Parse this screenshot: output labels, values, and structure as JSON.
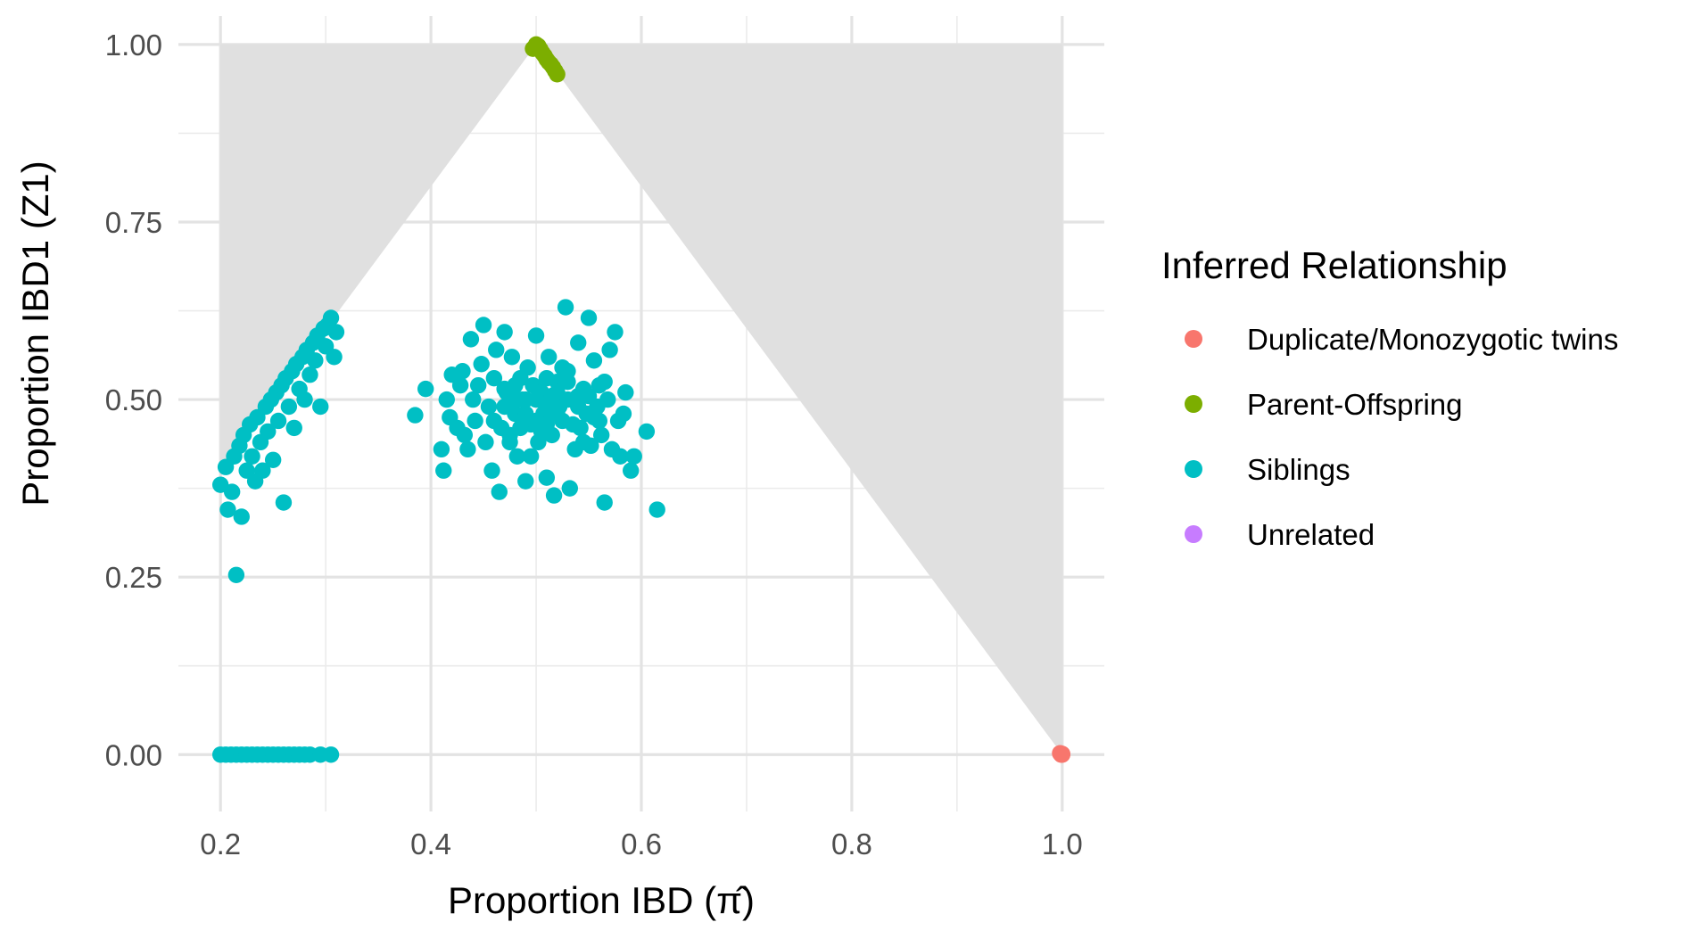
{
  "chart_data": {
    "type": "scatter",
    "xlabel": "Proportion IBD (π̂)",
    "ylabel": "Proportion IBD1 (Z1)",
    "xlim": [
      0.16,
      1.04
    ],
    "ylim": [
      -0.08,
      1.04
    ],
    "x_ticks": [
      "0.2",
      "0.4",
      "0.6",
      "0.8",
      "1.0"
    ],
    "y_ticks": [
      "0.00",
      "0.25",
      "0.50",
      "0.75",
      "1.00"
    ],
    "grid": true,
    "legend": {
      "title": "Inferred Relationship",
      "placement": "right",
      "entries": [
        "Duplicate/Monozygotic twins",
        "Parent-Offspring",
        "Siblings",
        "Unrelated"
      ]
    },
    "shaded_region": {
      "fill": "#e0e0e0",
      "polygon": [
        [
          0.2,
          1.0
        ],
        [
          0.2,
          0.4
        ],
        [
          0.5,
          1.0
        ],
        [
          1.0,
          1.0
        ],
        [
          1.0,
          0.0
        ],
        [
          0.5,
          1.0
        ]
      ]
    },
    "series": [
      {
        "name": "Duplicate/Monozygotic twins",
        "color": "#F8766D",
        "points": [
          [
            0.999,
            0.0
          ],
          [
            1.0,
            0.001
          ],
          [
            0.998,
            0.002
          ],
          [
            1.0,
            0.0
          ]
        ]
      },
      {
        "name": "Parent-Offspring",
        "color": "#7CAE00",
        "points": [
          [
            0.497,
            0.994
          ],
          [
            0.5,
            1.0
          ],
          [
            0.502,
            0.998
          ],
          [
            0.504,
            0.993
          ],
          [
            0.506,
            0.988
          ],
          [
            0.508,
            0.984
          ],
          [
            0.51,
            0.979
          ],
          [
            0.512,
            0.975
          ],
          [
            0.514,
            0.972
          ],
          [
            0.516,
            0.968
          ],
          [
            0.518,
            0.963
          ],
          [
            0.52,
            0.958
          ]
        ]
      },
      {
        "name": "Siblings",
        "color": "#00BFC4",
        "points": [
          [
            0.2,
            0.38
          ],
          [
            0.205,
            0.405
          ],
          [
            0.207,
            0.345
          ],
          [
            0.211,
            0.37
          ],
          [
            0.213,
            0.42
          ],
          [
            0.215,
            0.253
          ],
          [
            0.218,
            0.435
          ],
          [
            0.22,
            0.335
          ],
          [
            0.222,
            0.45
          ],
          [
            0.225,
            0.4
          ],
          [
            0.228,
            0.465
          ],
          [
            0.23,
            0.42
          ],
          [
            0.233,
            0.385
          ],
          [
            0.235,
            0.475
          ],
          [
            0.238,
            0.44
          ],
          [
            0.24,
            0.4
          ],
          [
            0.243,
            0.49
          ],
          [
            0.245,
            0.455
          ],
          [
            0.248,
            0.5
          ],
          [
            0.25,
            0.415
          ],
          [
            0.253,
            0.51
          ],
          [
            0.255,
            0.47
          ],
          [
            0.258,
            0.52
          ],
          [
            0.26,
            0.355
          ],
          [
            0.262,
            0.53
          ],
          [
            0.265,
            0.49
          ],
          [
            0.268,
            0.54
          ],
          [
            0.27,
            0.46
          ],
          [
            0.272,
            0.55
          ],
          [
            0.275,
            0.515
          ],
          [
            0.278,
            0.56
          ],
          [
            0.28,
            0.5
          ],
          [
            0.282,
            0.57
          ],
          [
            0.285,
            0.535
          ],
          [
            0.288,
            0.58
          ],
          [
            0.29,
            0.555
          ],
          [
            0.292,
            0.59
          ],
          [
            0.295,
            0.49
          ],
          [
            0.298,
            0.6
          ],
          [
            0.3,
            0.575
          ],
          [
            0.302,
            0.605
          ],
          [
            0.305,
            0.615
          ],
          [
            0.308,
            0.56
          ],
          [
            0.31,
            0.595
          ],
          [
            0.385,
            0.478
          ],
          [
            0.395,
            0.515
          ],
          [
            0.41,
            0.43
          ],
          [
            0.412,
            0.4
          ],
          [
            0.415,
            0.5
          ],
          [
            0.418,
            0.475
          ],
          [
            0.42,
            0.535
          ],
          [
            0.425,
            0.46
          ],
          [
            0.428,
            0.52
          ],
          [
            0.43,
            0.54
          ],
          [
            0.432,
            0.45
          ],
          [
            0.435,
            0.43
          ],
          [
            0.438,
            0.585
          ],
          [
            0.44,
            0.5
          ],
          [
            0.442,
            0.47
          ],
          [
            0.445,
            0.52
          ],
          [
            0.448,
            0.55
          ],
          [
            0.45,
            0.605
          ],
          [
            0.452,
            0.44
          ],
          [
            0.455,
            0.49
          ],
          [
            0.458,
            0.4
          ],
          [
            0.46,
            0.53
          ],
          [
            0.462,
            0.57
          ],
          [
            0.465,
            0.37
          ],
          [
            0.467,
            0.46
          ],
          [
            0.47,
            0.595
          ],
          [
            0.472,
            0.51
          ],
          [
            0.475,
            0.45
          ],
          [
            0.477,
            0.56
          ],
          [
            0.48,
            0.48
          ],
          [
            0.482,
            0.42
          ],
          [
            0.485,
            0.53
          ],
          [
            0.487,
            0.5
          ],
          [
            0.49,
            0.385
          ],
          [
            0.492,
            0.545
          ],
          [
            0.495,
            0.465
          ],
          [
            0.497,
            0.52
          ],
          [
            0.5,
            0.59
          ],
          [
            0.502,
            0.44
          ],
          [
            0.505,
            0.51
          ],
          [
            0.507,
            0.48
          ],
          [
            0.51,
            0.39
          ],
          [
            0.512,
            0.56
          ],
          [
            0.515,
            0.45
          ],
          [
            0.517,
            0.365
          ],
          [
            0.52,
            0.525
          ],
          [
            0.522,
            0.49
          ],
          [
            0.525,
            0.47
          ],
          [
            0.528,
            0.63
          ],
          [
            0.53,
            0.54
          ],
          [
            0.532,
            0.375
          ],
          [
            0.535,
            0.5
          ],
          [
            0.537,
            0.43
          ],
          [
            0.54,
            0.58
          ],
          [
            0.542,
            0.46
          ],
          [
            0.545,
            0.515
          ],
          [
            0.548,
            0.48
          ],
          [
            0.55,
            0.615
          ],
          [
            0.552,
            0.435
          ],
          [
            0.555,
            0.555
          ],
          [
            0.558,
            0.49
          ],
          [
            0.56,
            0.52
          ],
          [
            0.562,
            0.45
          ],
          [
            0.565,
            0.355
          ],
          [
            0.568,
            0.5
          ],
          [
            0.57,
            0.57
          ],
          [
            0.572,
            0.43
          ],
          [
            0.575,
            0.595
          ],
          [
            0.578,
            0.47
          ],
          [
            0.58,
            0.42
          ],
          [
            0.583,
            0.48
          ],
          [
            0.585,
            0.51
          ],
          [
            0.59,
            0.4
          ],
          [
            0.593,
            0.42
          ],
          [
            0.605,
            0.455
          ],
          [
            0.615,
            0.345
          ],
          [
            0.46,
            0.47
          ],
          [
            0.47,
            0.49
          ],
          [
            0.48,
            0.52
          ],
          [
            0.49,
            0.5
          ],
          [
            0.5,
            0.47
          ],
          [
            0.51,
            0.53
          ],
          [
            0.52,
            0.48
          ],
          [
            0.53,
            0.5
          ],
          [
            0.54,
            0.49
          ],
          [
            0.55,
            0.505
          ],
          [
            0.56,
            0.47
          ],
          [
            0.475,
            0.44
          ],
          [
            0.485,
            0.46
          ],
          [
            0.495,
            0.42
          ],
          [
            0.505,
            0.455
          ],
          [
            0.515,
            0.505
          ],
          [
            0.525,
            0.545
          ],
          [
            0.535,
            0.465
          ],
          [
            0.545,
            0.44
          ],
          [
            0.555,
            0.475
          ],
          [
            0.565,
            0.525
          ],
          [
            0.5,
            0.5
          ],
          [
            0.51,
            0.49
          ],
          [
            0.52,
            0.51
          ],
          [
            0.49,
            0.48
          ],
          [
            0.48,
            0.5
          ],
          [
            0.53,
            0.525
          ],
          [
            0.47,
            0.515
          ],
          [
            0.54,
            0.505
          ],
          [
            0.51,
            0.465
          ],
          [
            0.2,
            0.0
          ],
          [
            0.205,
            0.0
          ],
          [
            0.21,
            0.0
          ],
          [
            0.215,
            0.0
          ],
          [
            0.22,
            0.0
          ],
          [
            0.225,
            0.0
          ],
          [
            0.23,
            0.0
          ],
          [
            0.235,
            0.0
          ],
          [
            0.24,
            0.0
          ],
          [
            0.245,
            0.0
          ],
          [
            0.25,
            0.0
          ],
          [
            0.255,
            0.0
          ],
          [
            0.26,
            0.0
          ],
          [
            0.265,
            0.0
          ],
          [
            0.27,
            0.0
          ],
          [
            0.275,
            0.0
          ],
          [
            0.28,
            0.0
          ],
          [
            0.285,
            0.0
          ],
          [
            0.295,
            0.0
          ],
          [
            0.305,
            0.0
          ]
        ]
      },
      {
        "name": "Unrelated",
        "color": "#C77CFF",
        "points": []
      }
    ]
  }
}
